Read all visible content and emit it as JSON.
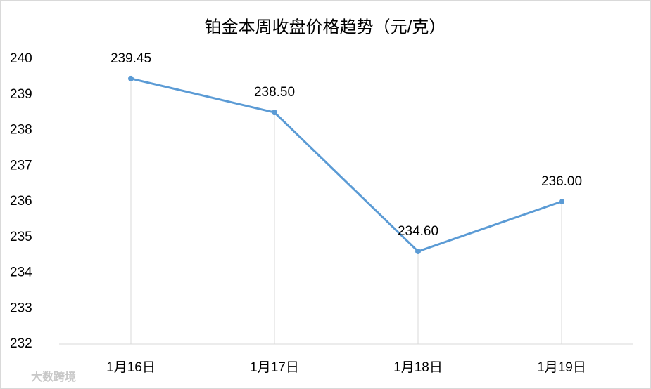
{
  "chart_data": {
    "type": "line",
    "title": "铂金本周收盘价格趋势（元/克）",
    "categories": [
      "1月16日",
      "1月17日",
      "1月18日",
      "1月19日"
    ],
    "values": [
      239.45,
      238.5,
      234.6,
      236.0
    ],
    "value_labels": [
      "239.45",
      "238.50",
      "234.60",
      "236.00"
    ],
    "color": "#5b9bd5",
    "drop_lines": true,
    "ylim": [
      232,
      240
    ],
    "yticks": [
      232,
      233,
      234,
      235,
      236,
      237,
      238,
      239,
      240
    ],
    "watermark": "大数跨境"
  }
}
